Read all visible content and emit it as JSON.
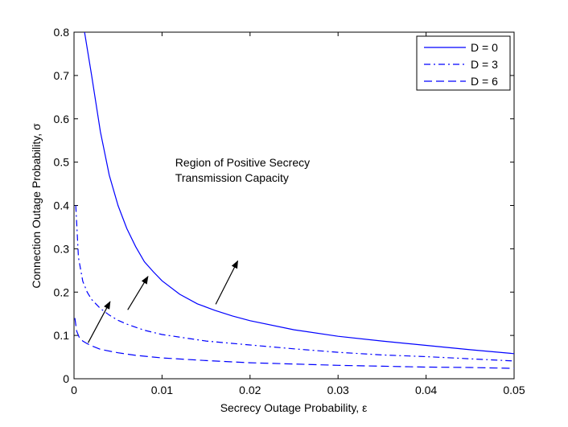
{
  "chart_data": {
    "type": "line",
    "title": "",
    "xlabel": "Secrecy Outage Probability, ε",
    "ylabel": "Connection Outage Probability, σ",
    "xlim": [
      0,
      0.05
    ],
    "ylim": [
      0,
      0.8
    ],
    "xticks": [
      0,
      0.01,
      0.02,
      0.03,
      0.04,
      0.05
    ],
    "xtick_labels": [
      "0",
      "0.01",
      "0.02",
      "0.03",
      "0.04",
      "0.05"
    ],
    "yticks": [
      0,
      0.1,
      0.2,
      0.3,
      0.4,
      0.5,
      0.6,
      0.7,
      0.8
    ],
    "ytick_labels": [
      "0",
      "0.1",
      "0.2",
      "0.3",
      "0.4",
      "0.5",
      "0.6",
      "0.7",
      "0.8"
    ],
    "grid": false,
    "legend_position": "top-right",
    "series": [
      {
        "name": "D = 0",
        "color": "#0000ff",
        "dash": "solid",
        "x": [
          0.0012,
          0.002,
          0.003,
          0.004,
          0.005,
          0.006,
          0.007,
          0.008,
          0.009,
          0.01,
          0.012,
          0.014,
          0.016,
          0.018,
          0.02,
          0.025,
          0.03,
          0.035,
          0.04,
          0.045,
          0.05
        ],
        "y": [
          0.8,
          0.7,
          0.57,
          0.47,
          0.4,
          0.347,
          0.305,
          0.27,
          0.247,
          0.226,
          0.195,
          0.173,
          0.158,
          0.145,
          0.134,
          0.113,
          0.098,
          0.087,
          0.077,
          0.067,
          0.058
        ]
      },
      {
        "name": "D = 3",
        "color": "#0000ff",
        "dash": "dash-dot",
        "x": [
          0.0002,
          0.0005,
          0.001,
          0.0015,
          0.002,
          0.003,
          0.004,
          0.005,
          0.006,
          0.008,
          0.01,
          0.015,
          0.02,
          0.025,
          0.03,
          0.035,
          0.04,
          0.045,
          0.05
        ],
        "y": [
          0.4,
          0.28,
          0.225,
          0.2,
          0.183,
          0.162,
          0.147,
          0.135,
          0.126,
          0.112,
          0.102,
          0.087,
          0.078,
          0.069,
          0.061,
          0.055,
          0.051,
          0.046,
          0.041
        ]
      },
      {
        "name": "D = 6",
        "color": "#0000ff",
        "dash": "dashed",
        "x": [
          0.0001,
          0.0003,
          0.0006,
          0.001,
          0.0015,
          0.002,
          0.003,
          0.005,
          0.007,
          0.01,
          0.015,
          0.02,
          0.025,
          0.03,
          0.035,
          0.04,
          0.045,
          0.05
        ],
        "y": [
          0.14,
          0.11,
          0.095,
          0.087,
          0.081,
          0.076,
          0.068,
          0.06,
          0.054,
          0.048,
          0.042,
          0.037,
          0.034,
          0.031,
          0.029,
          0.027,
          0.026,
          0.024
        ]
      }
    ],
    "annotations": [
      {
        "text_lines": [
          "Region of Positive Secrecy",
          "Transmission Capacity"
        ],
        "x": 0.0115,
        "y": 0.49
      }
    ],
    "arrows": [
      {
        "from": [
          0.0161,
          0.172
        ],
        "to": [
          0.0186,
          0.272
        ]
      },
      {
        "from": [
          0.0061,
          0.159
        ],
        "to": [
          0.0084,
          0.236
        ]
      },
      {
        "from": [
          0.0016,
          0.083
        ],
        "to": [
          0.0041,
          0.178
        ]
      }
    ]
  }
}
